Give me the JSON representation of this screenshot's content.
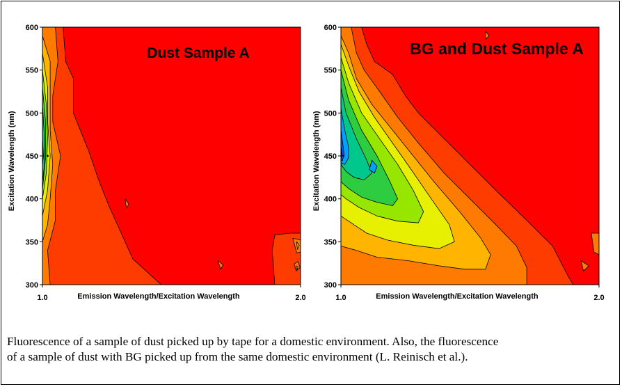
{
  "chart_data": [
    {
      "type": "contour",
      "title": "Dust Sample A",
      "xlabel": "Emission Wavelength/Excitation Wavelength",
      "ylabel": "Excitation Wavelength (nm)",
      "xlim": [
        1.0,
        2.0
      ],
      "ylim": [
        300,
        600
      ],
      "xticks": [
        "1.0",
        "2.0"
      ],
      "yticks": [
        "300",
        "350",
        "400",
        "450",
        "500",
        "550",
        "600"
      ],
      "background_color": "#ff0000",
      "peak": {
        "x": 1.02,
        "y": 450
      },
      "contours": [
        {
          "level": 1,
          "color": "#ff3c00",
          "points": [
            [
              1.0,
              600
            ],
            [
              1.08,
              600
            ],
            [
              1.09,
              560
            ],
            [
              1.12,
              540
            ],
            [
              1.12,
              500
            ],
            [
              1.18,
              455
            ],
            [
              1.22,
              420
            ],
            [
              1.26,
              390
            ],
            [
              1.35,
              330
            ],
            [
              1.46,
              300
            ],
            [
              1.0,
              300
            ]
          ]
        },
        {
          "level": 2,
          "color": "#ff7a00",
          "points": [
            [
              1.0,
              600
            ],
            [
              1.05,
              600
            ],
            [
              1.06,
              560
            ],
            [
              1.04,
              520
            ],
            [
              1.04,
              490
            ],
            [
              1.07,
              450
            ],
            [
              1.05,
              410
            ],
            [
              1.05,
              375
            ],
            [
              1.02,
              340
            ],
            [
              1.03,
              300
            ],
            [
              1.0,
              300
            ]
          ]
        },
        {
          "level": 3,
          "color": "#ffb400",
          "points": [
            [
              1.0,
              590
            ],
            [
              1.03,
              560
            ],
            [
              1.03,
              520
            ],
            [
              1.03,
              480
            ],
            [
              1.04,
              440
            ],
            [
              1.03,
              400
            ],
            [
              1.02,
              370
            ],
            [
              1.0,
              350
            ]
          ]
        },
        {
          "level": 4,
          "color": "#e6f000",
          "points": [
            [
              1.0,
              570
            ],
            [
              1.02,
              530
            ],
            [
              1.02,
              490
            ],
            [
              1.03,
              450
            ],
            [
              1.02,
              410
            ],
            [
              1.0,
              380
            ]
          ]
        },
        {
          "level": 5,
          "color": "#96e600",
          "points": [
            [
              1.0,
              550
            ],
            [
              1.015,
              510
            ],
            [
              1.02,
              470
            ],
            [
              1.015,
              430
            ],
            [
              1.0,
              400
            ]
          ]
        },
        {
          "level": 6,
          "color": "#2ecc40",
          "points": [
            [
              1.0,
              530
            ],
            [
              1.012,
              490
            ],
            [
              1.013,
              450
            ],
            [
              1.0,
              410
            ]
          ]
        },
        {
          "level": 7,
          "color": "#00c88c",
          "points": [
            [
              1.0,
              510
            ],
            [
              1.008,
              470
            ],
            [
              1.008,
              440
            ],
            [
              1.0,
              420
            ]
          ]
        },
        {
          "level": 8,
          "color": "#0064ff",
          "points": [
            [
              1.0,
              470
            ],
            [
              1.004,
              450
            ],
            [
              1.0,
              440
            ]
          ]
        },
        {
          "level": 1,
          "color": "#ff3c00",
          "points": [
            [
              1.9,
              358
            ],
            [
              1.96,
              360
            ],
            [
              2.0,
              360
            ],
            [
              2.02,
              355
            ],
            [
              2.01,
              330
            ],
            [
              2.0,
              300
            ],
            [
              1.9,
              300
            ],
            [
              1.89,
              340
            ]
          ]
        },
        {
          "level": 2,
          "color": "#ff7a00",
          "points": [
            [
              1.97,
              354
            ],
            [
              2.0,
              352
            ],
            [
              2.0,
              338
            ],
            [
              1.985,
              337
            ]
          ]
        },
        {
          "level": 2,
          "color": "#ff7a00",
          "points": [
            [
              1.975,
              324
            ],
            [
              1.99,
              327
            ],
            [
              1.998,
              320
            ],
            [
              1.983,
              316
            ]
          ]
        },
        {
          "level": 3,
          "color": "#ffb400",
          "points": [
            [
              1.985,
              350
            ],
            [
              1.995,
              346
            ],
            [
              1.988,
              341
            ]
          ]
        },
        {
          "level": 3,
          "color": "#ffb400",
          "points": [
            [
              1.982,
              322
            ],
            [
              1.99,
              321
            ],
            [
              1.986,
              317
            ]
          ]
        },
        {
          "level": 2,
          "color": "#ff7a00",
          "points": [
            [
              1.32,
              400
            ],
            [
              1.335,
              394
            ],
            [
              1.325,
              389
            ]
          ]
        },
        {
          "level": 2,
          "color": "#ff7a00",
          "points": [
            [
              1.68,
              328
            ],
            [
              1.7,
              323
            ],
            [
              1.69,
              318
            ]
          ]
        }
      ]
    },
    {
      "type": "contour",
      "title": "BG and Dust Sample A",
      "xlabel": "Emission Wavelength/Excitation Wavelength",
      "ylabel": "Excitation Wavelength (nm)",
      "xlim": [
        1.0,
        2.0
      ],
      "ylim": [
        300,
        600
      ],
      "xticks": [
        "1.0",
        "2.0"
      ],
      "yticks": [
        "300",
        "350",
        "400",
        "450",
        "500",
        "550",
        "600"
      ],
      "background_color": "#ff0000",
      "peak": {
        "x": 1.01,
        "y": 450
      },
      "contours": [
        {
          "level": 1,
          "color": "#ff3c00",
          "points": [
            [
              1.0,
              600
            ],
            [
              1.08,
              600
            ],
            [
              1.1,
              580
            ],
            [
              1.13,
              560
            ],
            [
              1.2,
              545
            ],
            [
              1.25,
              520
            ],
            [
              1.3,
              500
            ],
            [
              1.4,
              470
            ],
            [
              1.5,
              440
            ],
            [
              1.6,
              410
            ],
            [
              1.72,
              375
            ],
            [
              1.82,
              345
            ],
            [
              1.88,
              310
            ],
            [
              1.9,
              300
            ],
            [
              1.0,
              300
            ]
          ]
        },
        {
          "level": 2,
          "color": "#ff7a00",
          "points": [
            [
              1.0,
              600
            ],
            [
              1.04,
              600
            ],
            [
              1.06,
              570
            ],
            [
              1.09,
              550
            ],
            [
              1.15,
              525
            ],
            [
              1.22,
              495
            ],
            [
              1.3,
              465
            ],
            [
              1.4,
              430
            ],
            [
              1.5,
              400
            ],
            [
              1.6,
              370
            ],
            [
              1.68,
              345
            ],
            [
              1.72,
              320
            ],
            [
              1.72,
              300
            ],
            [
              1.0,
              300
            ]
          ]
        },
        {
          "level": 3,
          "color": "#ffb400",
          "points": [
            [
              1.0,
              590
            ],
            [
              1.03,
              570
            ],
            [
              1.06,
              540
            ],
            [
              1.12,
              510
            ],
            [
              1.2,
              480
            ],
            [
              1.28,
              450
            ],
            [
              1.36,
              420
            ],
            [
              1.46,
              385
            ],
            [
              1.54,
              355
            ],
            [
              1.58,
              335
            ],
            [
              1.56,
              318
            ],
            [
              1.48,
              318
            ],
            [
              1.38,
              322
            ],
            [
              1.26,
              328
            ],
            [
              1.14,
              332
            ],
            [
              1.06,
              340
            ],
            [
              1.0,
              345
            ]
          ]
        },
        {
          "level": 4,
          "color": "#e6f000",
          "points": [
            [
              1.0,
              580
            ],
            [
              1.03,
              555
            ],
            [
              1.07,
              525
            ],
            [
              1.13,
              495
            ],
            [
              1.2,
              465
            ],
            [
              1.27,
              435
            ],
            [
              1.35,
              400
            ],
            [
              1.42,
              370
            ],
            [
              1.44,
              350
            ],
            [
              1.38,
              342
            ],
            [
              1.28,
              346
            ],
            [
              1.18,
              352
            ],
            [
              1.1,
              360
            ],
            [
              1.04,
              372
            ],
            [
              1.0,
              380
            ]
          ]
        },
        {
          "level": 5,
          "color": "#96e600",
          "points": [
            [
              1.0,
              565
            ],
            [
              1.03,
              535
            ],
            [
              1.08,
              500
            ],
            [
              1.15,
              470
            ],
            [
              1.22,
              440
            ],
            [
              1.28,
              410
            ],
            [
              1.32,
              385
            ],
            [
              1.3,
              372
            ],
            [
              1.22,
              374
            ],
            [
              1.14,
              380
            ],
            [
              1.07,
              390
            ],
            [
              1.02,
              400
            ],
            [
              1.0,
              405
            ]
          ]
        },
        {
          "level": 6,
          "color": "#2ecc40",
          "points": [
            [
              1.0,
              550
            ],
            [
              1.03,
              515
            ],
            [
              1.08,
              480
            ],
            [
              1.14,
              450
            ],
            [
              1.19,
              420
            ],
            [
              1.22,
              400
            ],
            [
              1.2,
              392
            ],
            [
              1.14,
              396
            ],
            [
              1.08,
              402
            ],
            [
              1.03,
              412
            ],
            [
              1.0,
              420
            ]
          ]
        },
        {
          "level": 7,
          "color": "#00c88c",
          "points": [
            [
              1.0,
              530
            ],
            [
              1.02,
              500
            ],
            [
              1.06,
              470
            ],
            [
              1.1,
              445
            ],
            [
              1.12,
              430
            ],
            [
              1.09,
              422
            ],
            [
              1.05,
              425
            ],
            [
              1.02,
              432
            ],
            [
              1.0,
              440
            ]
          ]
        },
        {
          "level": 8,
          "color": "#00a0ff",
          "points": [
            [
              1.0,
              505
            ],
            [
              1.015,
              480
            ],
            [
              1.03,
              460
            ],
            [
              1.03,
              448
            ],
            [
              1.015,
              440
            ],
            [
              1.0,
              442
            ]
          ]
        },
        {
          "level": 9,
          "color": "#0064ff",
          "points": [
            [
              1.0,
              480
            ],
            [
              1.008,
              462
            ],
            [
              1.012,
              452
            ],
            [
              1.005,
              444
            ],
            [
              1.0,
              446
            ]
          ]
        },
        {
          "level": 10,
          "color": "#0000c8",
          "points": [
            [
              1.0,
              462
            ],
            [
              1.005,
              452
            ],
            [
              1.0,
              446
            ]
          ]
        },
        {
          "level": 2,
          "color": "#ff7a00",
          "points": [
            [
              1.97,
              360
            ],
            [
              2.0,
              360
            ],
            [
              2.0,
              335
            ],
            [
              1.98,
              338
            ]
          ]
        },
        {
          "level": 2,
          "color": "#ff7a00",
          "points": [
            [
              1.93,
              328
            ],
            [
              1.96,
              322
            ],
            [
              1.94,
              316
            ]
          ]
        },
        {
          "level": 2,
          "color": "#ff7a00",
          "points": [
            [
              1.56,
              595
            ],
            [
              1.575,
              590
            ],
            [
              1.56,
              586
            ]
          ]
        },
        {
          "level": 8,
          "color": "#00a0ff",
          "points": [
            [
              1.12,
              445
            ],
            [
              1.14,
              438
            ],
            [
              1.13,
              430
            ],
            [
              1.11,
              434
            ]
          ]
        }
      ]
    }
  ],
  "caption": {
    "line1": "Fluorescence of a sample of dust picked up by tape for a domestic environment.  Also, the fluorescence",
    "line2": "of a sample of dust with BG picked up from the same domestic environment (L. Reinisch et al.)."
  }
}
